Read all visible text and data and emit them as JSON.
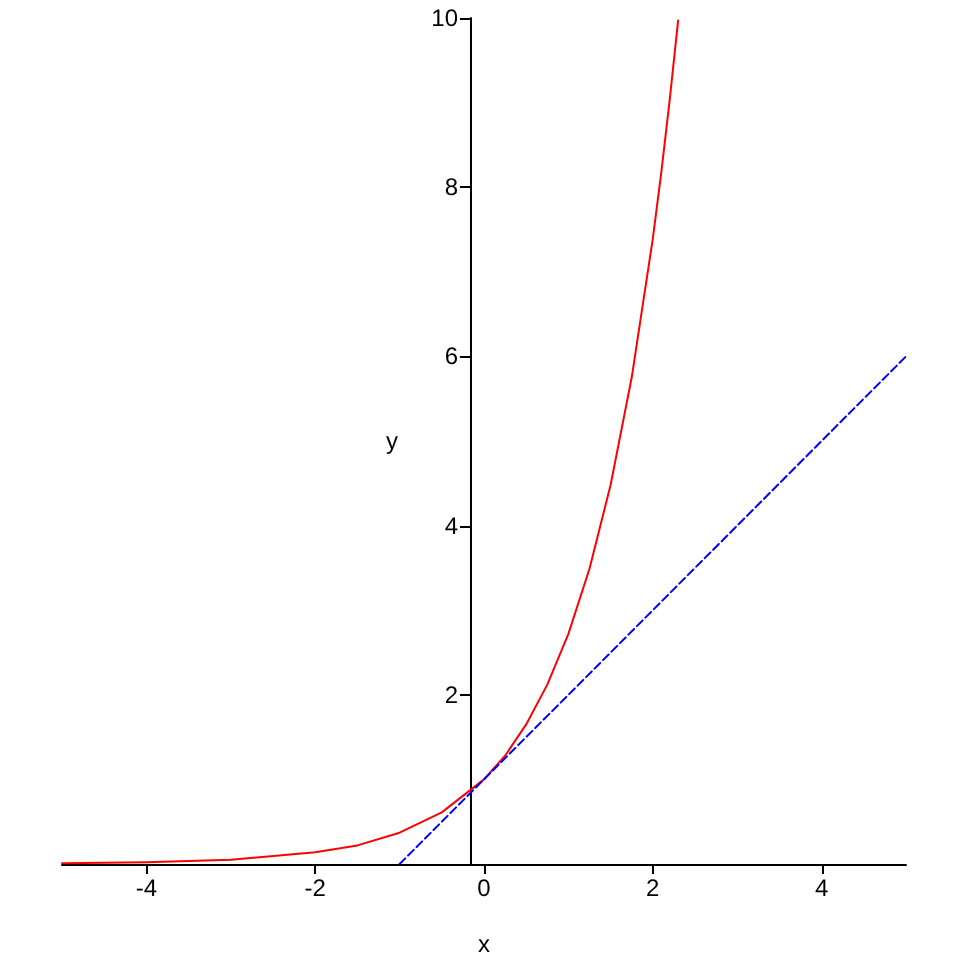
{
  "chart_data": {
    "type": "line",
    "xlabel": "x",
    "ylabel": "y",
    "xlim": [
      -5,
      5
    ],
    "ylim": [
      0,
      10
    ],
    "xticks": [
      -4,
      -2,
      0,
      2,
      4
    ],
    "yticks": [
      2,
      4,
      6,
      8,
      10
    ],
    "grid": false,
    "marker": "none",
    "series": [
      {
        "color": "#ff0000",
        "line_style": "solid",
        "x": [
          -5,
          -4,
          -3,
          -2,
          -1.5,
          -1,
          -0.5,
          0,
          0.25,
          0.5,
          0.75,
          1,
          1.25,
          1.5,
          1.75,
          2,
          2.1,
          2.2,
          2.3
        ],
        "values": [
          0.01,
          0.02,
          0.05,
          0.14,
          0.22,
          0.37,
          0.61,
          1,
          1.28,
          1.65,
          2.12,
          2.72,
          3.49,
          4.48,
          5.75,
          7.39,
          8.17,
          9.03,
          9.97
        ]
      },
      {
        "color": "#0000ff",
        "line_style": "dashed",
        "x": [
          -1,
          5
        ],
        "values": [
          0,
          6
        ]
      }
    ]
  }
}
